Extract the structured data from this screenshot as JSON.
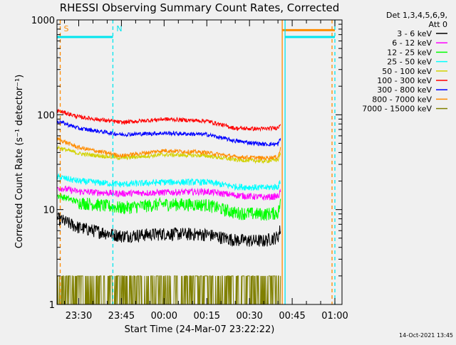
{
  "chart_data": {
    "type": "line",
    "title": "RHESSI Observing Summary Count Rates, Corrected",
    "xlabel": "Start Time (24-Mar-07 23:22:22)",
    "ylabel": "Corrected Count Rate (s⁻¹ detector⁻¹)",
    "y_scale": "log",
    "ylim": [
      1,
      1000
    ],
    "xlim": [
      "23:22:22",
      "01:02:30"
    ],
    "xticks": [
      "23:30",
      "23:45",
      "00:00",
      "00:15",
      "00:30",
      "00:45",
      "01:00"
    ],
    "yticks": [
      "1",
      "10",
      "100",
      "1000"
    ],
    "grid": false,
    "legend_position": "right",
    "legend_header": [
      "Det 1,3,4,5,6,9,",
      "Att 0"
    ],
    "timestamp": "14-Oct-2021 13:45",
    "data_span": [
      "23:22:30",
      "00:41:00"
    ],
    "markers": [
      {
        "label": "S",
        "color": "#ff8c00",
        "time": "23:23:30",
        "style": "dashed"
      },
      {
        "label": "N",
        "color": "#00e5ee",
        "time": "23:42:00",
        "style": "dashed"
      },
      {
        "label": "",
        "color": "#ff8c00",
        "time": "00:41:30",
        "style": "solid"
      },
      {
        "label": "",
        "color": "#00e5ee",
        "time": "00:42:30",
        "style": "solid"
      },
      {
        "label": "",
        "color": "#ff8c00",
        "time": "00:59:00",
        "style": "dashed"
      },
      {
        "label": "",
        "color": "#00e5ee",
        "time": "01:00:00",
        "style": "dashed"
      }
    ],
    "flag_bars": [
      {
        "color": "#00e5ee",
        "value": 660,
        "segments": [
          [
            "23:22:22",
            "23:42:00"
          ],
          [
            "00:42:30",
            "01:00:00"
          ]
        ]
      },
      {
        "color": "#ff8c00",
        "value": 780,
        "segments": [
          [
            "00:41:30",
            "01:00:00"
          ]
        ]
      }
    ],
    "series": [
      {
        "name": "3 - 6 keV",
        "color": "#000000",
        "x": [
          "23:23",
          "23:30",
          "23:45",
          "00:00",
          "00:15",
          "00:25",
          "00:35",
          "00:40",
          "00:41"
        ],
        "values": [
          8,
          6.5,
          5.3,
          5.6,
          5.5,
          4.8,
          4.7,
          5.2,
          6.5
        ]
      },
      {
        "name": "6 - 12 keV",
        "color": "#ff00ff",
        "x": [
          "23:23",
          "23:30",
          "23:45",
          "00:00",
          "00:15",
          "00:25",
          "00:35",
          "00:40",
          "00:41"
        ],
        "values": [
          17,
          15.5,
          14.8,
          15.2,
          15.5,
          14.2,
          13.5,
          13.8,
          15.5
        ]
      },
      {
        "name": "12 - 25 keV",
        "color": "#00ff00",
        "x": [
          "23:23",
          "23:30",
          "23:45",
          "00:00",
          "00:15",
          "00:25",
          "00:35",
          "00:40",
          "00:41"
        ],
        "values": [
          14,
          12,
          10.5,
          11.5,
          11.3,
          9.3,
          9,
          9.3,
          12
        ]
      },
      {
        "name": "25 - 50 keV",
        "color": "#00ffff",
        "x": [
          "23:23",
          "23:30",
          "23:45",
          "00:00",
          "00:15",
          "00:25",
          "00:35",
          "00:40",
          "00:41"
        ],
        "values": [
          22,
          20,
          18.5,
          19.5,
          19.5,
          17.5,
          17,
          17.5,
          20
        ]
      },
      {
        "name": "50 - 100 keV",
        "color": "#d2d200",
        "x": [
          "23:23",
          "23:30",
          "23:45",
          "00:00",
          "00:15",
          "00:25",
          "00:35",
          "00:40",
          "00:41"
        ],
        "values": [
          45,
          39,
          35,
          38,
          37,
          33.5,
          32.5,
          33.5,
          40
        ]
      },
      {
        "name": "100 - 300 keV",
        "color": "#ff0000",
        "x": [
          "23:23",
          "23:30",
          "23:45",
          "00:00",
          "00:15",
          "00:25",
          "00:35",
          "00:40",
          "00:41"
        ],
        "values": [
          110,
          95,
          83,
          90,
          86,
          72,
          71,
          73,
          83
        ]
      },
      {
        "name": "300 - 800 keV",
        "color": "#0000ff",
        "x": [
          "23:23",
          "23:30",
          "23:45",
          "00:00",
          "00:15",
          "00:25",
          "00:35",
          "00:40",
          "00:41"
        ],
        "values": [
          85,
          72,
          62,
          64,
          62,
          53,
          49,
          49,
          57
        ]
      },
      {
        "name": "800 - 7000 keV",
        "color": "#ff8c00",
        "x": [
          "23:23",
          "23:30",
          "23:45",
          "00:00",
          "00:15",
          "00:25",
          "00:35",
          "00:40",
          "00:41"
        ],
        "values": [
          55,
          45,
          37,
          42,
          40,
          36,
          35,
          36,
          45
        ]
      },
      {
        "name": "7000 - 15000 keV",
        "color": "#808000",
        "x": [
          "23:23",
          "23:30",
          "23:45",
          "00:00",
          "00:15",
          "00:25",
          "00:35",
          "00:40",
          "00:41"
        ],
        "values": [
          2,
          2,
          2,
          2,
          2,
          2,
          2,
          2,
          2
        ],
        "noise_floor": 1
      }
    ]
  }
}
